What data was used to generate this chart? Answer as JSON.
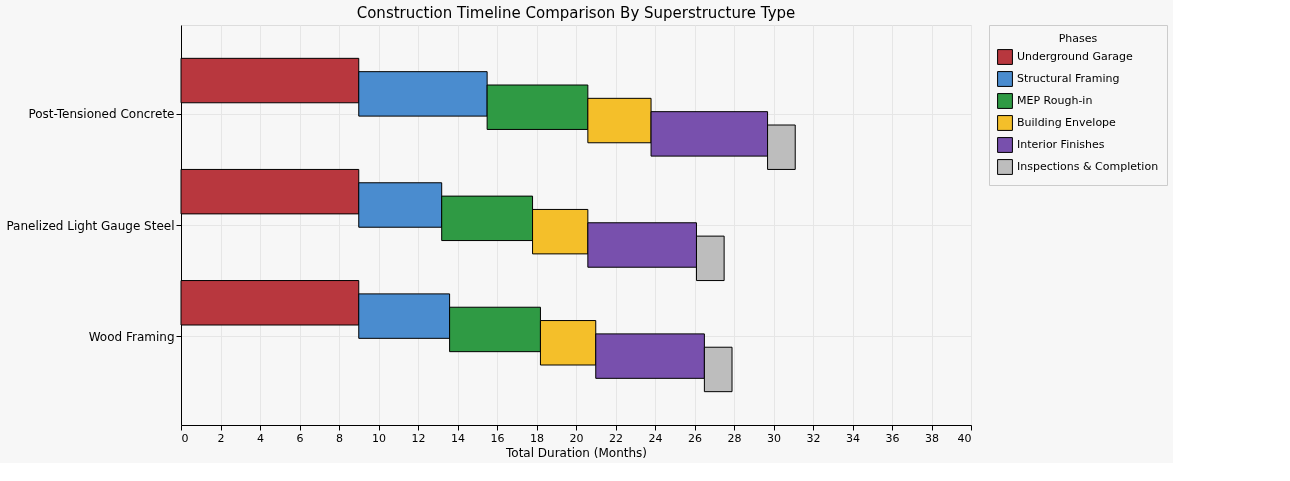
{
  "chart_data": {
    "type": "bar",
    "orientation": "horizontal",
    "stacked": true,
    "title": "Construction Timeline Comparison By Superstructure Type",
    "xlabel": "Total Duration (Months)",
    "legend_title": "Phases",
    "legend": "right",
    "categories": [
      "Post-Tensioned Concrete",
      "Panelized Light Gauge Steel",
      "Wood Framing"
    ],
    "series": [
      {
        "name": "Underground Garage",
        "color": "#b8373e",
        "values": [
          9,
          9,
          9
        ]
      },
      {
        "name": "Structural Framing",
        "color": "#4a8ccf",
        "values": [
          6.5,
          4.2,
          4.6
        ]
      },
      {
        "name": "MEP Rough-in",
        "color": "#2f9a44",
        "values": [
          5.1,
          4.6,
          4.6
        ]
      },
      {
        "name": "Building Envelope",
        "color": "#f4bf2a",
        "values": [
          3.2,
          2.8,
          2.8
        ]
      },
      {
        "name": "Interior Finishes",
        "color": "#7850ad",
        "values": [
          5.9,
          5.5,
          5.5
        ]
      },
      {
        "name": "Inspections & Completion",
        "color": "#bdbdbd",
        "values": [
          1.4,
          1.4,
          1.4
        ]
      }
    ],
    "xlim": [
      0,
      40
    ],
    "xticks": [
      0,
      2,
      4,
      6,
      8,
      10,
      12,
      14,
      16,
      18,
      20,
      22,
      24,
      26,
      28,
      30,
      32,
      34,
      36,
      38,
      40
    ],
    "grid": true
  }
}
